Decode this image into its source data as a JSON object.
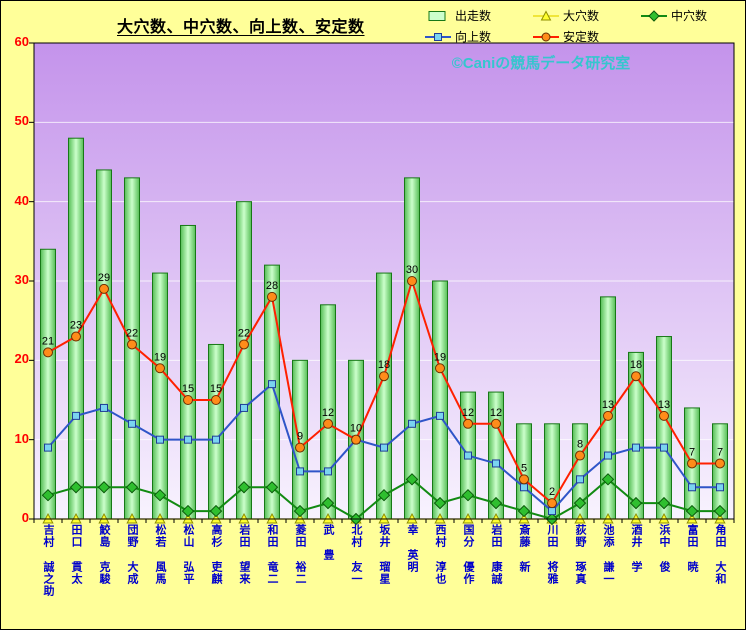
{
  "title": "大穴数、中穴数、向上数、安定数",
  "watermark": "©Caniの競馬データ研究室",
  "colors": {
    "frame_background": "#FFFF99",
    "plot_gradient_top": "#C493EB",
    "plot_gradient_bottom": "#F8F3FE",
    "gridline": "#FFFFFF",
    "y_axis_text": "#FF0000",
    "x_axis_text": "#0000CC",
    "watermark_text": "#35C6CE",
    "title_text": "#000000"
  },
  "chart_data": {
    "type": "bar+line",
    "title": "大穴数、中穴数、向上数、安定数",
    "categories": [
      "吉村 誠之助",
      "田口 貫太",
      "鮫島 克駿",
      "団野 大成",
      "松若 風馬",
      "松山 弘平",
      "高杉 吏麒",
      "岩田 望来",
      "和田 竜二",
      "菱田 裕二",
      "武 豊",
      "北村 友一",
      "坂井 瑠星",
      "幸 英明",
      "西村 淳也",
      "国分 優作",
      "岩田 康誠",
      "斎藤 新",
      "川田 将雅",
      "荻野 琢真",
      "池添 謙一",
      "酒井 学",
      "浜中 俊",
      "富田 暁",
      "角田 大和"
    ],
    "series": [
      {
        "key": "starts",
        "name": "出走数",
        "type": "bar",
        "fill": "#CCFFCC",
        "side_fill": "#55BE55",
        "edge": "#177817",
        "values": [
          34,
          48,
          44,
          43,
          31,
          37,
          22,
          40,
          32,
          20,
          27,
          20,
          31,
          43,
          30,
          16,
          16,
          12,
          12,
          12,
          28,
          21,
          23,
          14,
          12
        ]
      },
      {
        "key": "big-upset",
        "name": "大穴数",
        "type": "line",
        "marker": "triangle",
        "line_color": "#E6D800",
        "marker_fill": "#FFFF2E",
        "marker_edge": "#8F8F00",
        "values": [
          0,
          0,
          0,
          0,
          0,
          0,
          0,
          0,
          0,
          0,
          0,
          0,
          0,
          0,
          0,
          0,
          0,
          0,
          0,
          0,
          0,
          0,
          0,
          0,
          0
        ]
      },
      {
        "key": "mid-upset",
        "name": "中穴数",
        "type": "line",
        "marker": "diamond",
        "line_color": "#128A12",
        "marker_fill": "#2FBF2F",
        "marker_edge": "#0A5A0A",
        "values": [
          3,
          4,
          4,
          4,
          3,
          1,
          1,
          4,
          4,
          1,
          2,
          0,
          3,
          5,
          2,
          3,
          2,
          1,
          0,
          2,
          5,
          2,
          2,
          1,
          1
        ]
      },
      {
        "key": "improve",
        "name": "向上数",
        "type": "line",
        "marker": "square",
        "line_color": "#2F55C8",
        "marker_fill": "#7AD4F0",
        "marker_edge": "#1F3C96",
        "values": [
          9,
          13,
          14,
          12,
          10,
          10,
          10,
          14,
          17,
          6,
          6,
          10,
          9,
          12,
          13,
          8,
          7,
          4,
          1,
          5,
          8,
          9,
          9,
          4,
          4
        ]
      },
      {
        "key": "stability",
        "name": "安定数",
        "type": "line",
        "marker": "circle",
        "line_color": "#FF2000",
        "marker_fill": "#FF8C1A",
        "marker_edge": "#6B3000",
        "data_labels": true,
        "values": [
          21,
          23,
          29,
          22,
          19,
          15,
          15,
          22,
          28,
          9,
          12,
          10,
          18,
          30,
          19,
          12,
          12,
          5,
          2,
          8,
          13,
          18,
          13,
          7,
          7
        ]
      }
    ],
    "ylim": [
      0,
      60
    ],
    "yticks": [
      0,
      10,
      20,
      30,
      40,
      50,
      60
    ],
    "grid": true,
    "legend_position": "top-right"
  }
}
